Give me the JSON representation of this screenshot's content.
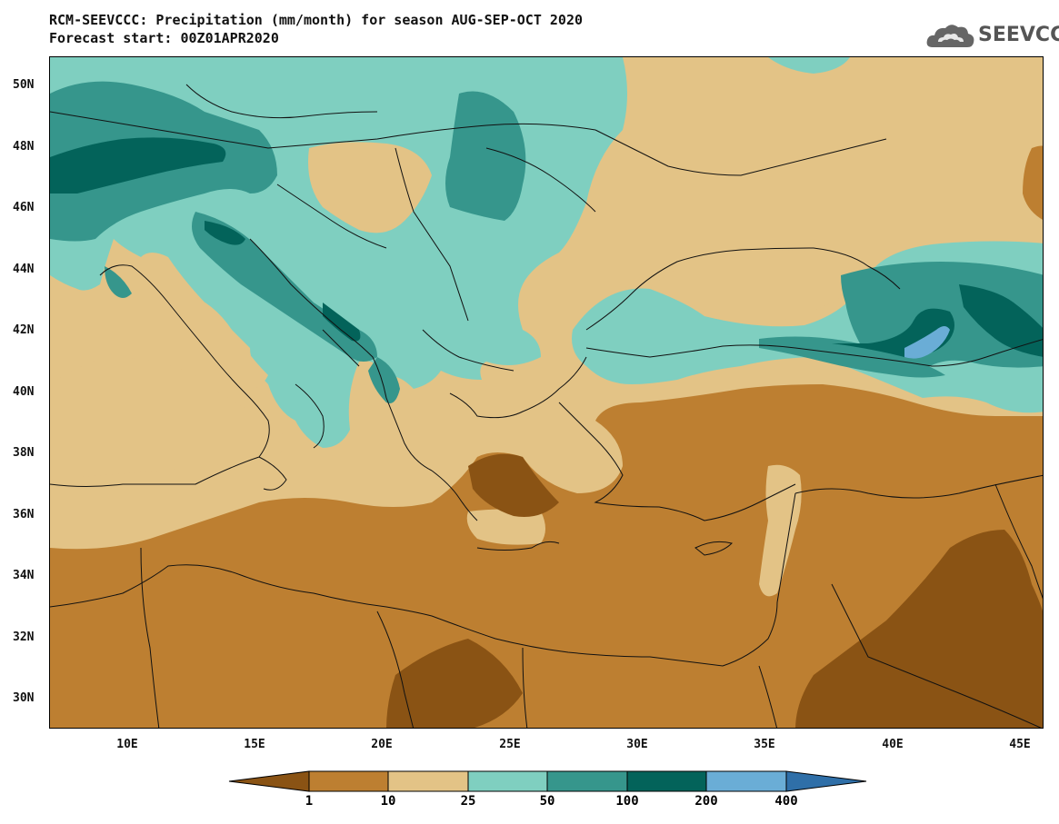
{
  "title": {
    "line1": "RCM-SEEVCCC: Precipitation (mm/month) for season AUG-SEP-OCT 2020",
    "line2": "Forecast start: 00Z01APR2020"
  },
  "logo": {
    "text": "SEEVCCC",
    "icon": "cloud-icon"
  },
  "axes": {
    "lat_ticks": [
      "50N",
      "48N",
      "46N",
      "44N",
      "42N",
      "40N",
      "38N",
      "36N",
      "34N",
      "32N",
      "30N"
    ],
    "lon_ticks": [
      "10E",
      "15E",
      "20E",
      "25E",
      "30E",
      "35E",
      "40E",
      "45E"
    ]
  },
  "colorbar": {
    "labels": [
      "1",
      "10",
      "25",
      "50",
      "100",
      "200",
      "400"
    ],
    "colors": [
      "#8a5314",
      "#bd7f31",
      "#e3c386",
      "#7fcfc0",
      "#36968c",
      "#03635a",
      "#6aadd6",
      "#2f6fa8"
    ]
  },
  "map": {
    "region_lat": [
      29,
      51
    ],
    "region_lon": [
      7,
      46
    ],
    "categories": {
      "lt_1": "#8a5314",
      "1_10": "#bd7f31",
      "10_25": "#e3c386",
      "25_50": "#7fcfc0",
      "50_100": "#36968c",
      "100_200": "#03635a",
      "200_400": "#6aadd6",
      "gt_400": "#2f6fa8"
    }
  }
}
